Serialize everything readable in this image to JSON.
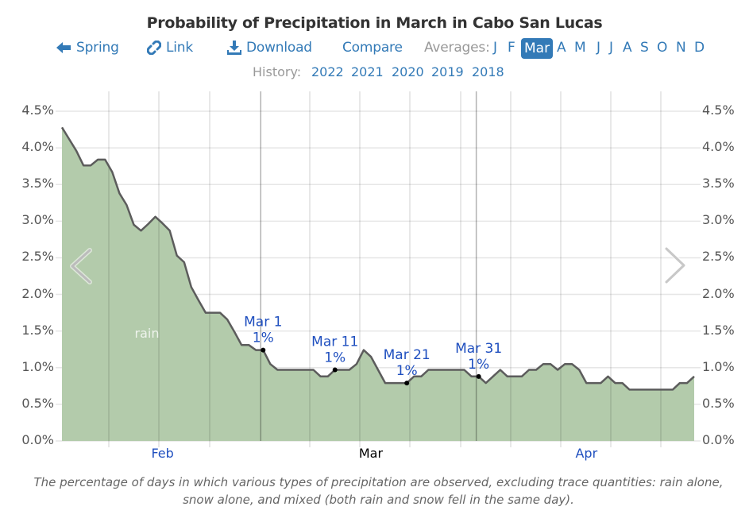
{
  "header": {
    "title": "Probability of Precipitation in March in Cabo San Lucas",
    "nav": {
      "spring": "Spring",
      "link": "Link",
      "download": "Download",
      "compare": "Compare",
      "averages_label": "Averages:",
      "months": [
        "J",
        "F",
        "Mar",
        "A",
        "M",
        "J",
        "J",
        "A",
        "S",
        "O",
        "N",
        "D"
      ],
      "active_month": "Mar"
    },
    "history": {
      "label": "History:",
      "years": [
        "2022",
        "2021",
        "2020",
        "2019",
        "2018"
      ]
    }
  },
  "colors": {
    "link": "#337ab7",
    "area_fill": "#b3cbab",
    "line": "#5c5c5c",
    "annotation": "#1f4fbf"
  },
  "chart_data": {
    "type": "area",
    "title": "Probability of Precipitation in March in Cabo San Lucas",
    "series": [
      {
        "name": "rain",
        "x_start": "Feb 1",
        "x_end": "Apr 30",
        "values": [
          4.28,
          4.12,
          3.96,
          3.76,
          3.76,
          3.84,
          3.84,
          3.67,
          3.38,
          3.22,
          2.95,
          2.87,
          2.96,
          3.06,
          2.97,
          2.87,
          2.53,
          2.44,
          2.1,
          1.92,
          1.75,
          1.75,
          1.75,
          1.66,
          1.49,
          1.31,
          1.31,
          1.24,
          1.24,
          1.05,
          0.97,
          0.97,
          0.97,
          0.97,
          0.97,
          0.97,
          0.88,
          0.88,
          0.97,
          0.97,
          0.97,
          1.05,
          1.24,
          1.15,
          0.97,
          0.79,
          0.79,
          0.79,
          0.79,
          0.88,
          0.88,
          0.97,
          0.97,
          0.97,
          0.97,
          0.97,
          0.97,
          0.88,
          0.88,
          0.79,
          0.88,
          0.97,
          0.88,
          0.88,
          0.88,
          0.97,
          0.97,
          1.05,
          1.05,
          0.97,
          1.05,
          1.05,
          0.97,
          0.79,
          0.79,
          0.79,
          0.88,
          0.79,
          0.79,
          0.7,
          0.7,
          0.7,
          0.7,
          0.7,
          0.7,
          0.7,
          0.79,
          0.79,
          0.88
        ]
      }
    ],
    "ylim": [
      0,
      4.5
    ],
    "y_ticks": [
      "0.0%",
      "0.5%",
      "1.0%",
      "1.5%",
      "2.0%",
      "2.5%",
      "3.0%",
      "3.5%",
      "4.0%",
      "4.5%"
    ],
    "x_ticks": [
      {
        "label": "Feb",
        "day_index": 14,
        "highlight": false
      },
      {
        "label": "Mar",
        "day_index": 43,
        "highlight": true
      },
      {
        "label": "Apr",
        "day_index": 73,
        "highlight": false
      }
    ],
    "series_label": "rain",
    "annotations": [
      {
        "date": "Mar 1",
        "value": "1%",
        "day_index": 28
      },
      {
        "date": "Mar 11",
        "value": "1%",
        "day_index": 38
      },
      {
        "date": "Mar 21",
        "value": "1%",
        "day_index": 48
      },
      {
        "date": "Mar 31",
        "value": "1%",
        "day_index": 58
      }
    ],
    "grid": true,
    "caption": "The percentage of days in which various types of precipitation are observed, excluding trace quantities: rain alone, snow alone, and mixed (both rain and snow fell in the same day)."
  }
}
